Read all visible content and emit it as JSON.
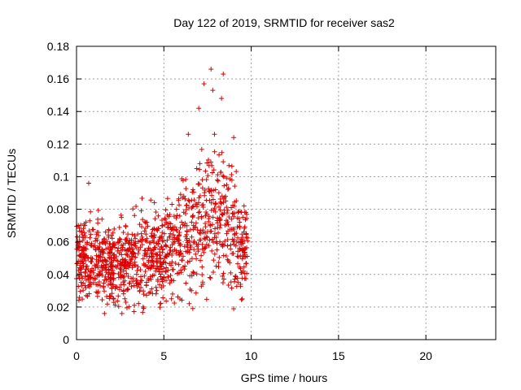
{
  "colors": {
    "series": "#dd0000",
    "frame": "#000000",
    "grid": "#a0a0a0"
  },
  "chart_data": {
    "type": "scatter",
    "title": "Day 122 of 2019, SRMTID for receiver sas2",
    "xlabel": "GPS time / hours",
    "ylabel": "SRMTID / TECUs",
    "xlim": [
      0,
      24
    ],
    "ylim": [
      0,
      0.18
    ],
    "grid": true,
    "xticks": [
      0,
      5,
      10,
      15,
      20
    ],
    "xtick_labels": [
      "0",
      "5",
      "10",
      "15",
      "20"
    ],
    "yticks": [
      0,
      0.02,
      0.04,
      0.06,
      0.08,
      0.1,
      0.12,
      0.14,
      0.16,
      0.18
    ],
    "ytick_labels": [
      "0",
      "0.02",
      "0.04",
      "0.06",
      "0.08",
      "0.1",
      "0.12",
      "0.14",
      "0.16",
      "0.18"
    ],
    "marker": "+",
    "series": [
      {
        "name": "SRMTID",
        "seed": 122,
        "x_range": [
          0,
          9.8
        ],
        "point_count": 1200,
        "envelope": [
          {
            "x": 0.0,
            "center": 0.05,
            "spread": 0.02,
            "max": 0.088
          },
          {
            "x": 1.0,
            "center": 0.048,
            "spread": 0.022,
            "max": 0.096
          },
          {
            "x": 2.0,
            "center": 0.045,
            "spread": 0.022,
            "max": 0.085
          },
          {
            "x": 3.0,
            "center": 0.05,
            "spread": 0.022,
            "max": 0.09
          },
          {
            "x": 4.0,
            "center": 0.05,
            "spread": 0.025,
            "max": 0.102
          },
          {
            "x": 5.0,
            "center": 0.052,
            "spread": 0.026,
            "max": 0.1
          },
          {
            "x": 6.0,
            "center": 0.06,
            "spread": 0.03,
            "max": 0.12
          },
          {
            "x": 7.0,
            "center": 0.07,
            "spread": 0.035,
            "max": 0.142
          },
          {
            "x": 8.0,
            "center": 0.075,
            "spread": 0.04,
            "max": 0.166
          },
          {
            "x": 9.0,
            "center": 0.065,
            "spread": 0.035,
            "max": 0.13
          },
          {
            "x": 9.8,
            "center": 0.06,
            "spread": 0.025,
            "max": 0.1
          }
        ],
        "notable_points": [
          {
            "x": 7.7,
            "y": 0.166
          },
          {
            "x": 8.4,
            "y": 0.163
          },
          {
            "x": 7.3,
            "y": 0.157
          },
          {
            "x": 7.8,
            "y": 0.153
          },
          {
            "x": 8.3,
            "y": 0.148
          },
          {
            "x": 7.0,
            "y": 0.142
          },
          {
            "x": 6.4,
            "y": 0.126
          },
          {
            "x": 9.0,
            "y": 0.124
          },
          {
            "x": 0.7,
            "y": 0.096
          },
          {
            "x": 2.6,
            "y": 0.016
          },
          {
            "x": 1.6,
            "y": 0.016
          }
        ]
      }
    ]
  }
}
